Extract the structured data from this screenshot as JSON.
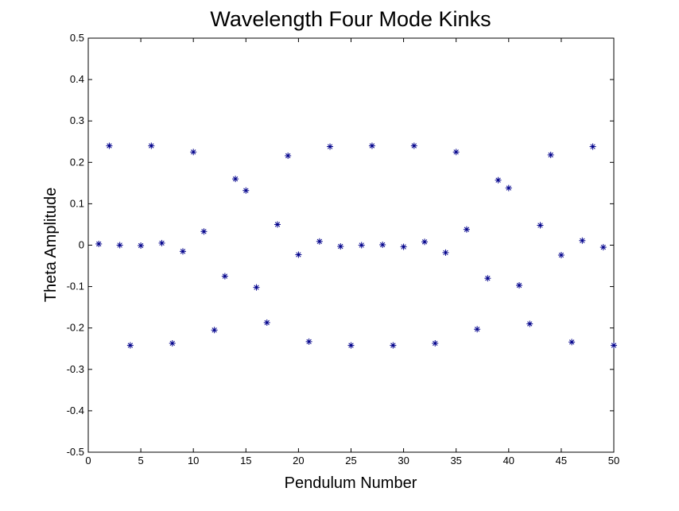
{
  "chart_data": {
    "type": "scatter",
    "title": "Wavelength Four Mode Kinks",
    "xlabel": "Pendulum Number",
    "ylabel": "Theta Amplitude",
    "xlim": [
      0,
      50
    ],
    "ylim": [
      -0.5,
      0.5
    ],
    "xticks": [
      0,
      5,
      10,
      15,
      20,
      25,
      30,
      35,
      40,
      45,
      50
    ],
    "yticks": [
      -0.5,
      -0.4,
      -0.3,
      -0.2,
      -0.1,
      0,
      0.1,
      0.2,
      0.3,
      0.4,
      0.5
    ],
    "grid": false,
    "marker": "asterisk",
    "marker_color": "#00008B",
    "series": [
      {
        "x": [
          1,
          2,
          3,
          4,
          5,
          6,
          7,
          8,
          9,
          10,
          11,
          12,
          13,
          14,
          15,
          16,
          17,
          18,
          19,
          20,
          21,
          22,
          23,
          24,
          25,
          26,
          27,
          28,
          29,
          30,
          31,
          32,
          33,
          34,
          35,
          36,
          37,
          38,
          39,
          40,
          41,
          42,
          43,
          44,
          45,
          46,
          47,
          48,
          49,
          50
        ],
        "y": [
          0.003,
          0.24,
          0.0,
          -0.242,
          -0.001,
          0.24,
          0.005,
          -0.237,
          -0.015,
          0.225,
          0.033,
          -0.205,
          -0.075,
          0.16,
          0.132,
          -0.102,
          -0.187,
          0.05,
          0.216,
          -0.023,
          -0.233,
          0.009,
          0.238,
          -0.003,
          -0.242,
          0.0,
          0.24,
          0.001,
          -0.242,
          -0.004,
          0.24,
          0.008,
          -0.237,
          -0.018,
          0.225,
          0.038,
          -0.203,
          -0.08,
          0.157,
          0.138,
          -0.097,
          -0.19,
          0.048,
          0.218,
          -0.024,
          -0.234,
          0.011,
          0.238,
          -0.005,
          -0.242
        ]
      }
    ]
  }
}
